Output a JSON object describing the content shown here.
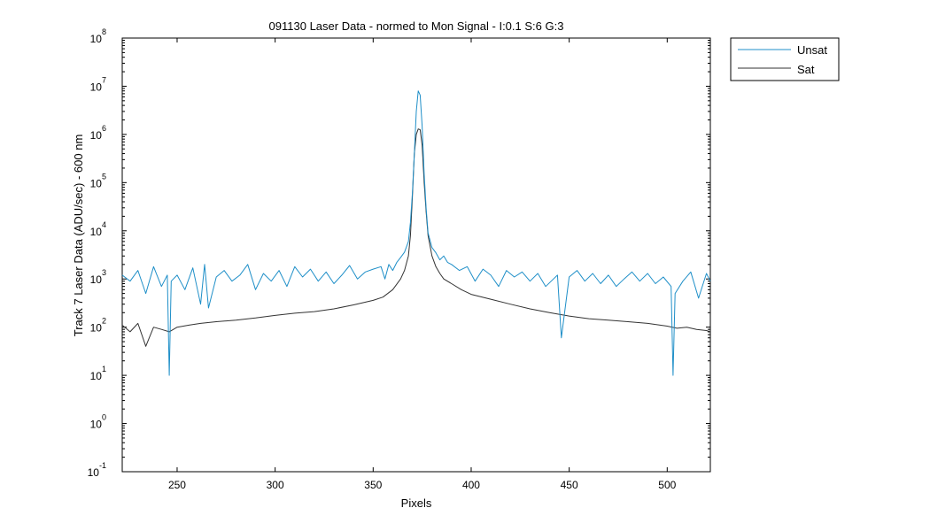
{
  "chart_data": {
    "type": "line",
    "title": "091130 Laser Data - normed to Mon Signal -   I:0.1  S:6  G:3",
    "xlabel": "Pixels",
    "ylabel": "Track 7 Laser Data (ADU/sec) - 600 nm",
    "xlim": [
      222,
      522
    ],
    "ylim": [
      0.1,
      100000000
    ],
    "yscale": "log",
    "grid": false,
    "legend_position": "outside-top-right",
    "x_ticks": [
      250,
      300,
      350,
      400,
      450,
      500
    ],
    "y_tick_labels": [
      {
        "base": "10",
        "exp": "-1"
      },
      {
        "base": "10",
        "exp": "0"
      },
      {
        "base": "10",
        "exp": "1"
      },
      {
        "base": "10",
        "exp": "2"
      },
      {
        "base": "10",
        "exp": "3"
      },
      {
        "base": "10",
        "exp": "4"
      },
      {
        "base": "10",
        "exp": "5"
      },
      {
        "base": "10",
        "exp": "6"
      },
      {
        "base": "10",
        "exp": "7"
      },
      {
        "base": "10",
        "exp": "8"
      }
    ],
    "series": [
      {
        "name": "Unsat",
        "color": "#1f8fc8",
        "x": [
          222,
          226,
          230,
          234,
          238,
          242,
          245,
          246,
          247,
          250,
          254,
          258,
          262,
          264,
          266,
          270,
          274,
          278,
          282,
          286,
          290,
          294,
          298,
          302,
          306,
          310,
          314,
          318,
          322,
          326,
          330,
          334,
          338,
          342,
          346,
          350,
          354,
          356,
          358,
          360,
          362,
          364,
          366,
          368,
          369,
          370,
          371,
          372,
          373,
          374,
          375,
          376,
          377,
          378,
          380,
          382,
          384,
          386,
          388,
          390,
          394,
          398,
          402,
          406,
          410,
          414,
          418,
          422,
          426,
          430,
          434,
          438,
          442,
          444,
          446,
          450,
          454,
          458,
          462,
          466,
          470,
          474,
          478,
          482,
          486,
          490,
          494,
          498,
          502,
          503,
          504,
          508,
          512,
          516,
          520,
          522
        ],
        "y": [
          1200,
          900,
          1500,
          500,
          1800,
          700,
          1200,
          10,
          900,
          1200,
          600,
          1700,
          300,
          2000,
          250,
          1100,
          1500,
          900,
          1200,
          2000,
          600,
          1300,
          900,
          1500,
          700,
          1800,
          1100,
          1600,
          900,
          1400,
          800,
          1200,
          1900,
          1000,
          1400,
          1600,
          1800,
          1000,
          2000,
          1500,
          2200,
          2800,
          3600,
          6000,
          15000,
          60000,
          400000,
          3000000,
          8000000,
          6500000,
          1500000,
          150000,
          30000,
          9000,
          4500,
          3500,
          2500,
          3000,
          2200,
          2000,
          1500,
          1800,
          900,
          1600,
          1200,
          700,
          1500,
          1100,
          1400,
          900,
          1300,
          700,
          1000,
          1200,
          60,
          1100,
          1500,
          900,
          1300,
          800,
          1200,
          700,
          1000,
          1400,
          900,
          1300,
          800,
          1100,
          700,
          10,
          500,
          900,
          1400,
          400,
          1300,
          900
        ]
      },
      {
        "name": "Sat",
        "color": "#333333",
        "x": [
          222,
          226,
          230,
          234,
          238,
          242,
          246,
          250,
          256,
          262,
          270,
          280,
          290,
          300,
          310,
          320,
          330,
          340,
          350,
          355,
          360,
          364,
          366,
          368,
          369,
          370,
          371,
          372,
          373,
          374,
          375,
          376,
          377,
          378,
          380,
          382,
          384,
          386,
          390,
          395,
          400,
          410,
          420,
          430,
          440,
          450,
          460,
          470,
          480,
          490,
          500,
          505,
          510,
          515,
          520,
          522
        ],
        "y": [
          110,
          80,
          120,
          40,
          100,
          90,
          80,
          100,
          110,
          120,
          130,
          140,
          155,
          175,
          195,
          210,
          240,
          290,
          360,
          420,
          600,
          1000,
          1500,
          3000,
          8000,
          50000,
          400000,
          1000000,
          1300000,
          1250000,
          600000,
          100000,
          25000,
          8000,
          3000,
          1800,
          1300,
          1000,
          800,
          600,
          480,
          380,
          300,
          240,
          200,
          170,
          150,
          140,
          130,
          120,
          105,
          95,
          100,
          90,
          85,
          80
        ]
      }
    ]
  }
}
